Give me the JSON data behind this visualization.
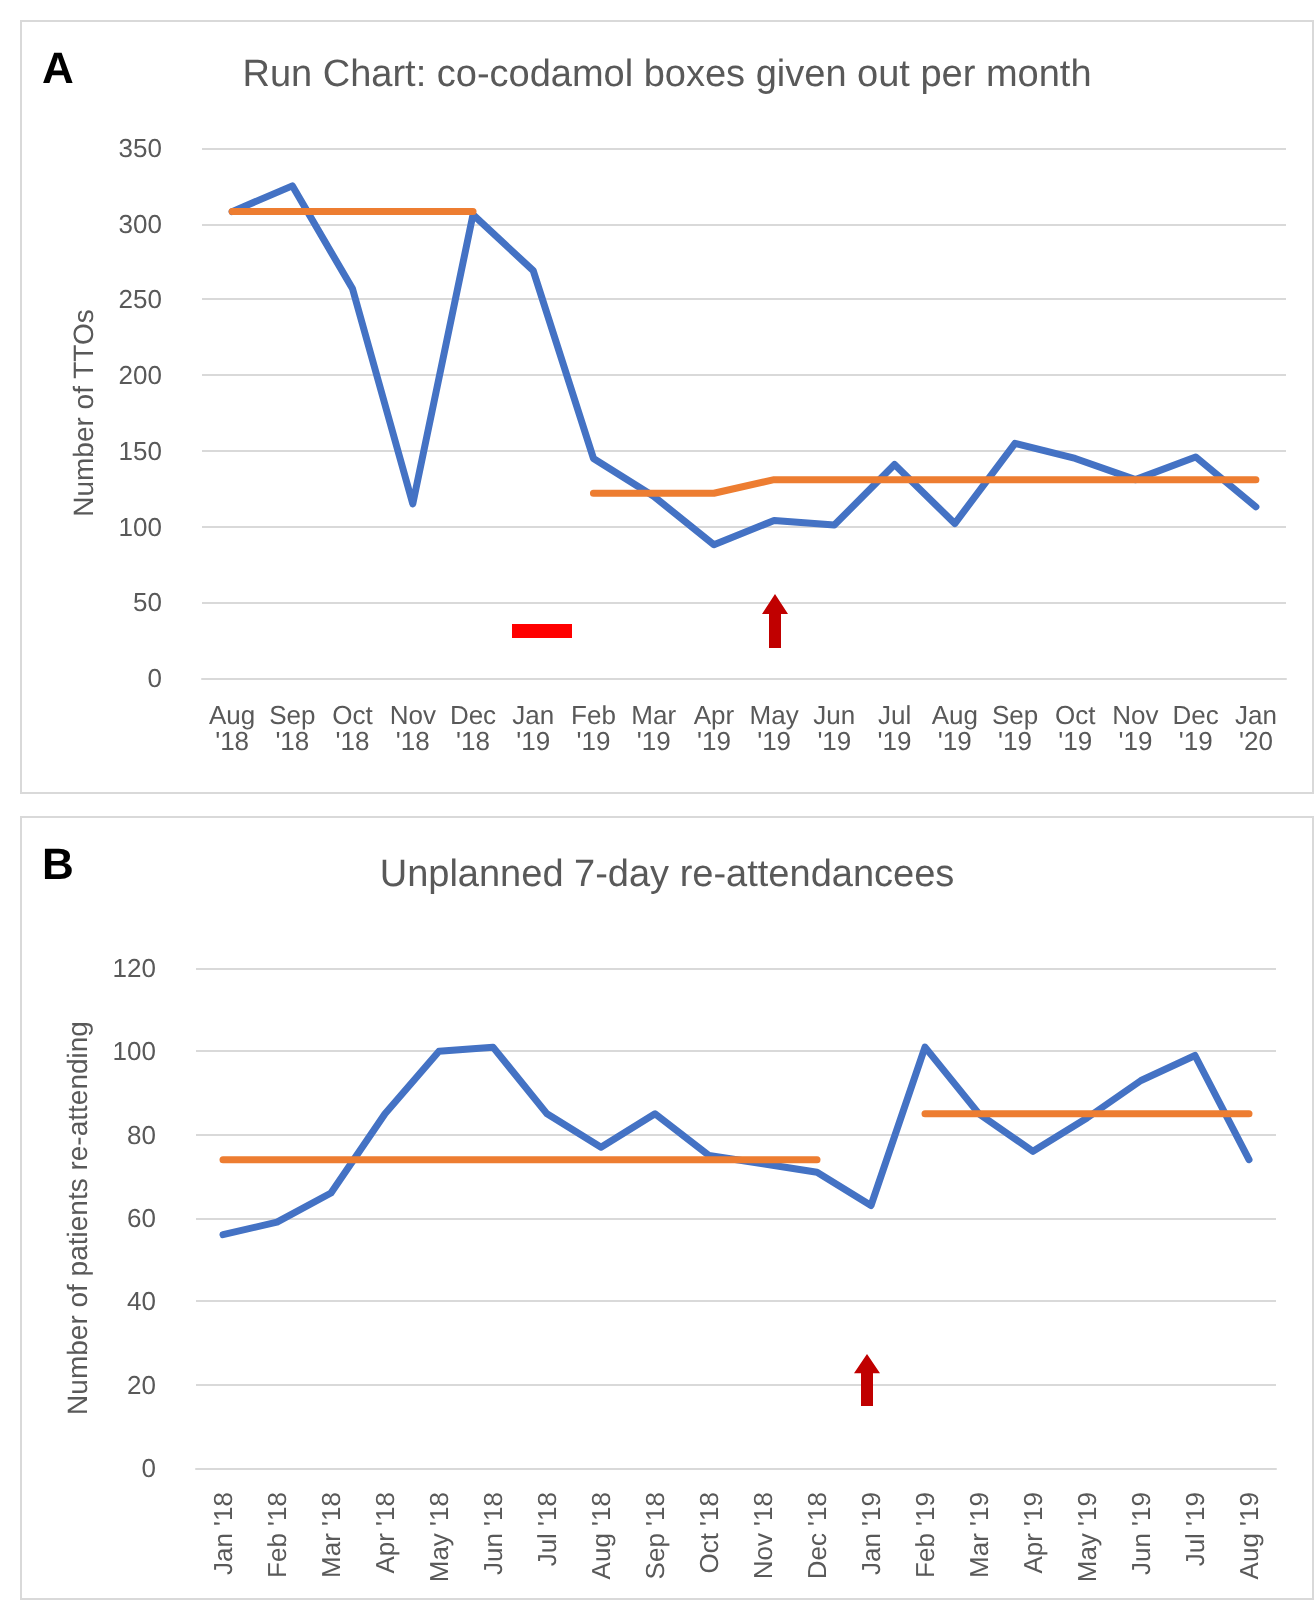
{
  "chart_data": [
    {
      "type": "line",
      "title": "Run Chart: co-codamol boxes given out per month",
      "ylabel": "Number of TTOs",
      "annotations": [
        "A"
      ],
      "categories": [
        "Aug '18",
        "Sep '18",
        "Oct '18",
        "Nov '18",
        "Dec '18",
        "Jan '19",
        "Feb '19",
        "Mar '19",
        "Apr '19",
        "May '19",
        "Jun '19",
        "Jul '19",
        "Aug '19",
        "Sep '19",
        "Oct '19",
        "Nov '19",
        "Dec '19",
        "Jan '20"
      ],
      "series": [
        {
          "color": "#4472c4",
          "values": [
            308,
            325,
            257,
            115,
            306,
            269,
            145,
            120,
            88,
            104,
            101,
            141,
            102,
            155,
            145,
            131,
            146,
            113
          ]
        },
        {
          "color": "#ed7d31",
          "values": [
            308,
            308,
            308,
            308,
            308,
            null,
            null,
            null,
            null,
            null,
            null,
            null,
            null,
            null,
            null,
            null,
            null,
            null
          ]
        },
        {
          "color": "#ed7d31",
          "values": [
            null,
            null,
            null,
            null,
            null,
            null,
            122,
            122,
            122,
            131,
            131,
            131,
            131,
            131,
            131,
            131,
            131,
            131
          ]
        }
      ],
      "ylim": [
        0,
        350
      ],
      "yticks": [
        0,
        50,
        100,
        150,
        200,
        250,
        300,
        350
      ],
      "grid": "y",
      "marker": "none",
      "line_style": "solid"
    },
    {
      "type": "line",
      "title": "Unplanned 7-day re-attendancees",
      "ylabel": "Number of patients re-attending",
      "annotations": [
        "B"
      ],
      "categories": [
        "Jan '18",
        "Feb '18",
        "Mar '18",
        "Apr '18",
        "May '18",
        "Jun '18",
        "Jul '18",
        "Aug '18",
        "Sep '18",
        "Oct '18",
        "Nov '18",
        "Dec '18",
        "Jan '19",
        "Feb '19",
        "Mar '19",
        "Apr '19",
        "May '19",
        "Jun '19",
        "Jul '19",
        "Aug '19"
      ],
      "series": [
        {
          "color": "#4472c4",
          "values": [
            56,
            59,
            66,
            85,
            100,
            101,
            85,
            77,
            85,
            75,
            73,
            71,
            63,
            101,
            85,
            76,
            84,
            93,
            99,
            74
          ]
        },
        {
          "color": "#ed7d31",
          "values": [
            74,
            74,
            74,
            74,
            74,
            74,
            74,
            74,
            74,
            74,
            74,
            74,
            null,
            null,
            null,
            null,
            null,
            null,
            null,
            null
          ]
        },
        {
          "color": "#ed7d31",
          "values": [
            null,
            null,
            null,
            null,
            null,
            null,
            null,
            null,
            null,
            null,
            null,
            null,
            null,
            85,
            85,
            85,
            85,
            85,
            85,
            85
          ]
        }
      ],
      "ylim": [
        0,
        120
      ],
      "yticks": [
        0,
        20,
        40,
        60,
        80,
        100,
        120
      ],
      "grid": "y",
      "marker": "none",
      "line_style": "solid"
    }
  ]
}
